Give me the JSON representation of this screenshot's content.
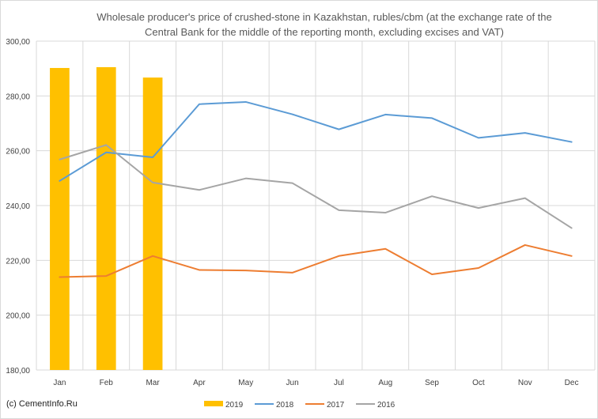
{
  "chart_data": {
    "type": "bar",
    "title_lines": [
      "Wholesale producer's price of crushed-stone in Kazakhstan, rubles/cbm (at the exchange rate of the",
      "Central Bank for the middle of the reporting month, excluding excises and VAT)"
    ],
    "categories": [
      "Jan",
      "Feb",
      "Mar",
      "Apr",
      "May",
      "Jun",
      "Jul",
      "Aug",
      "Sep",
      "Oct",
      "Nov",
      "Dec"
    ],
    "ylim": [
      180,
      300
    ],
    "yticks": [
      "180,00",
      "200,00",
      "220,00",
      "240,00",
      "260,00",
      "280,00",
      "300,00"
    ],
    "grid": true,
    "legend_position": "bottom",
    "series": [
      {
        "name": "2019",
        "kind": "bar",
        "color": "#FFC000",
        "values": [
          290.2,
          290.5,
          286.7,
          null,
          null,
          null,
          null,
          null,
          null,
          null,
          null,
          null
        ]
      },
      {
        "name": "2018",
        "kind": "line",
        "color": "#5B9BD5",
        "values": [
          249.0,
          259.4,
          257.6,
          277.0,
          277.8,
          273.3,
          267.8,
          273.2,
          271.9,
          264.7,
          266.5,
          263.2
        ]
      },
      {
        "name": "2017",
        "kind": "line",
        "color": "#ED7D31",
        "values": [
          213.9,
          214.3,
          221.6,
          216.5,
          216.3,
          215.5,
          221.6,
          224.2,
          214.9,
          217.2,
          225.6,
          221.6
        ]
      },
      {
        "name": "2016",
        "kind": "line",
        "color": "#A5A5A5",
        "values": [
          256.8,
          262.1,
          248.4,
          245.7,
          249.9,
          248.2,
          238.3,
          237.4,
          243.4,
          239.1,
          242.7,
          231.8
        ]
      }
    ]
  },
  "credit": "(c) CementInfo.Ru"
}
